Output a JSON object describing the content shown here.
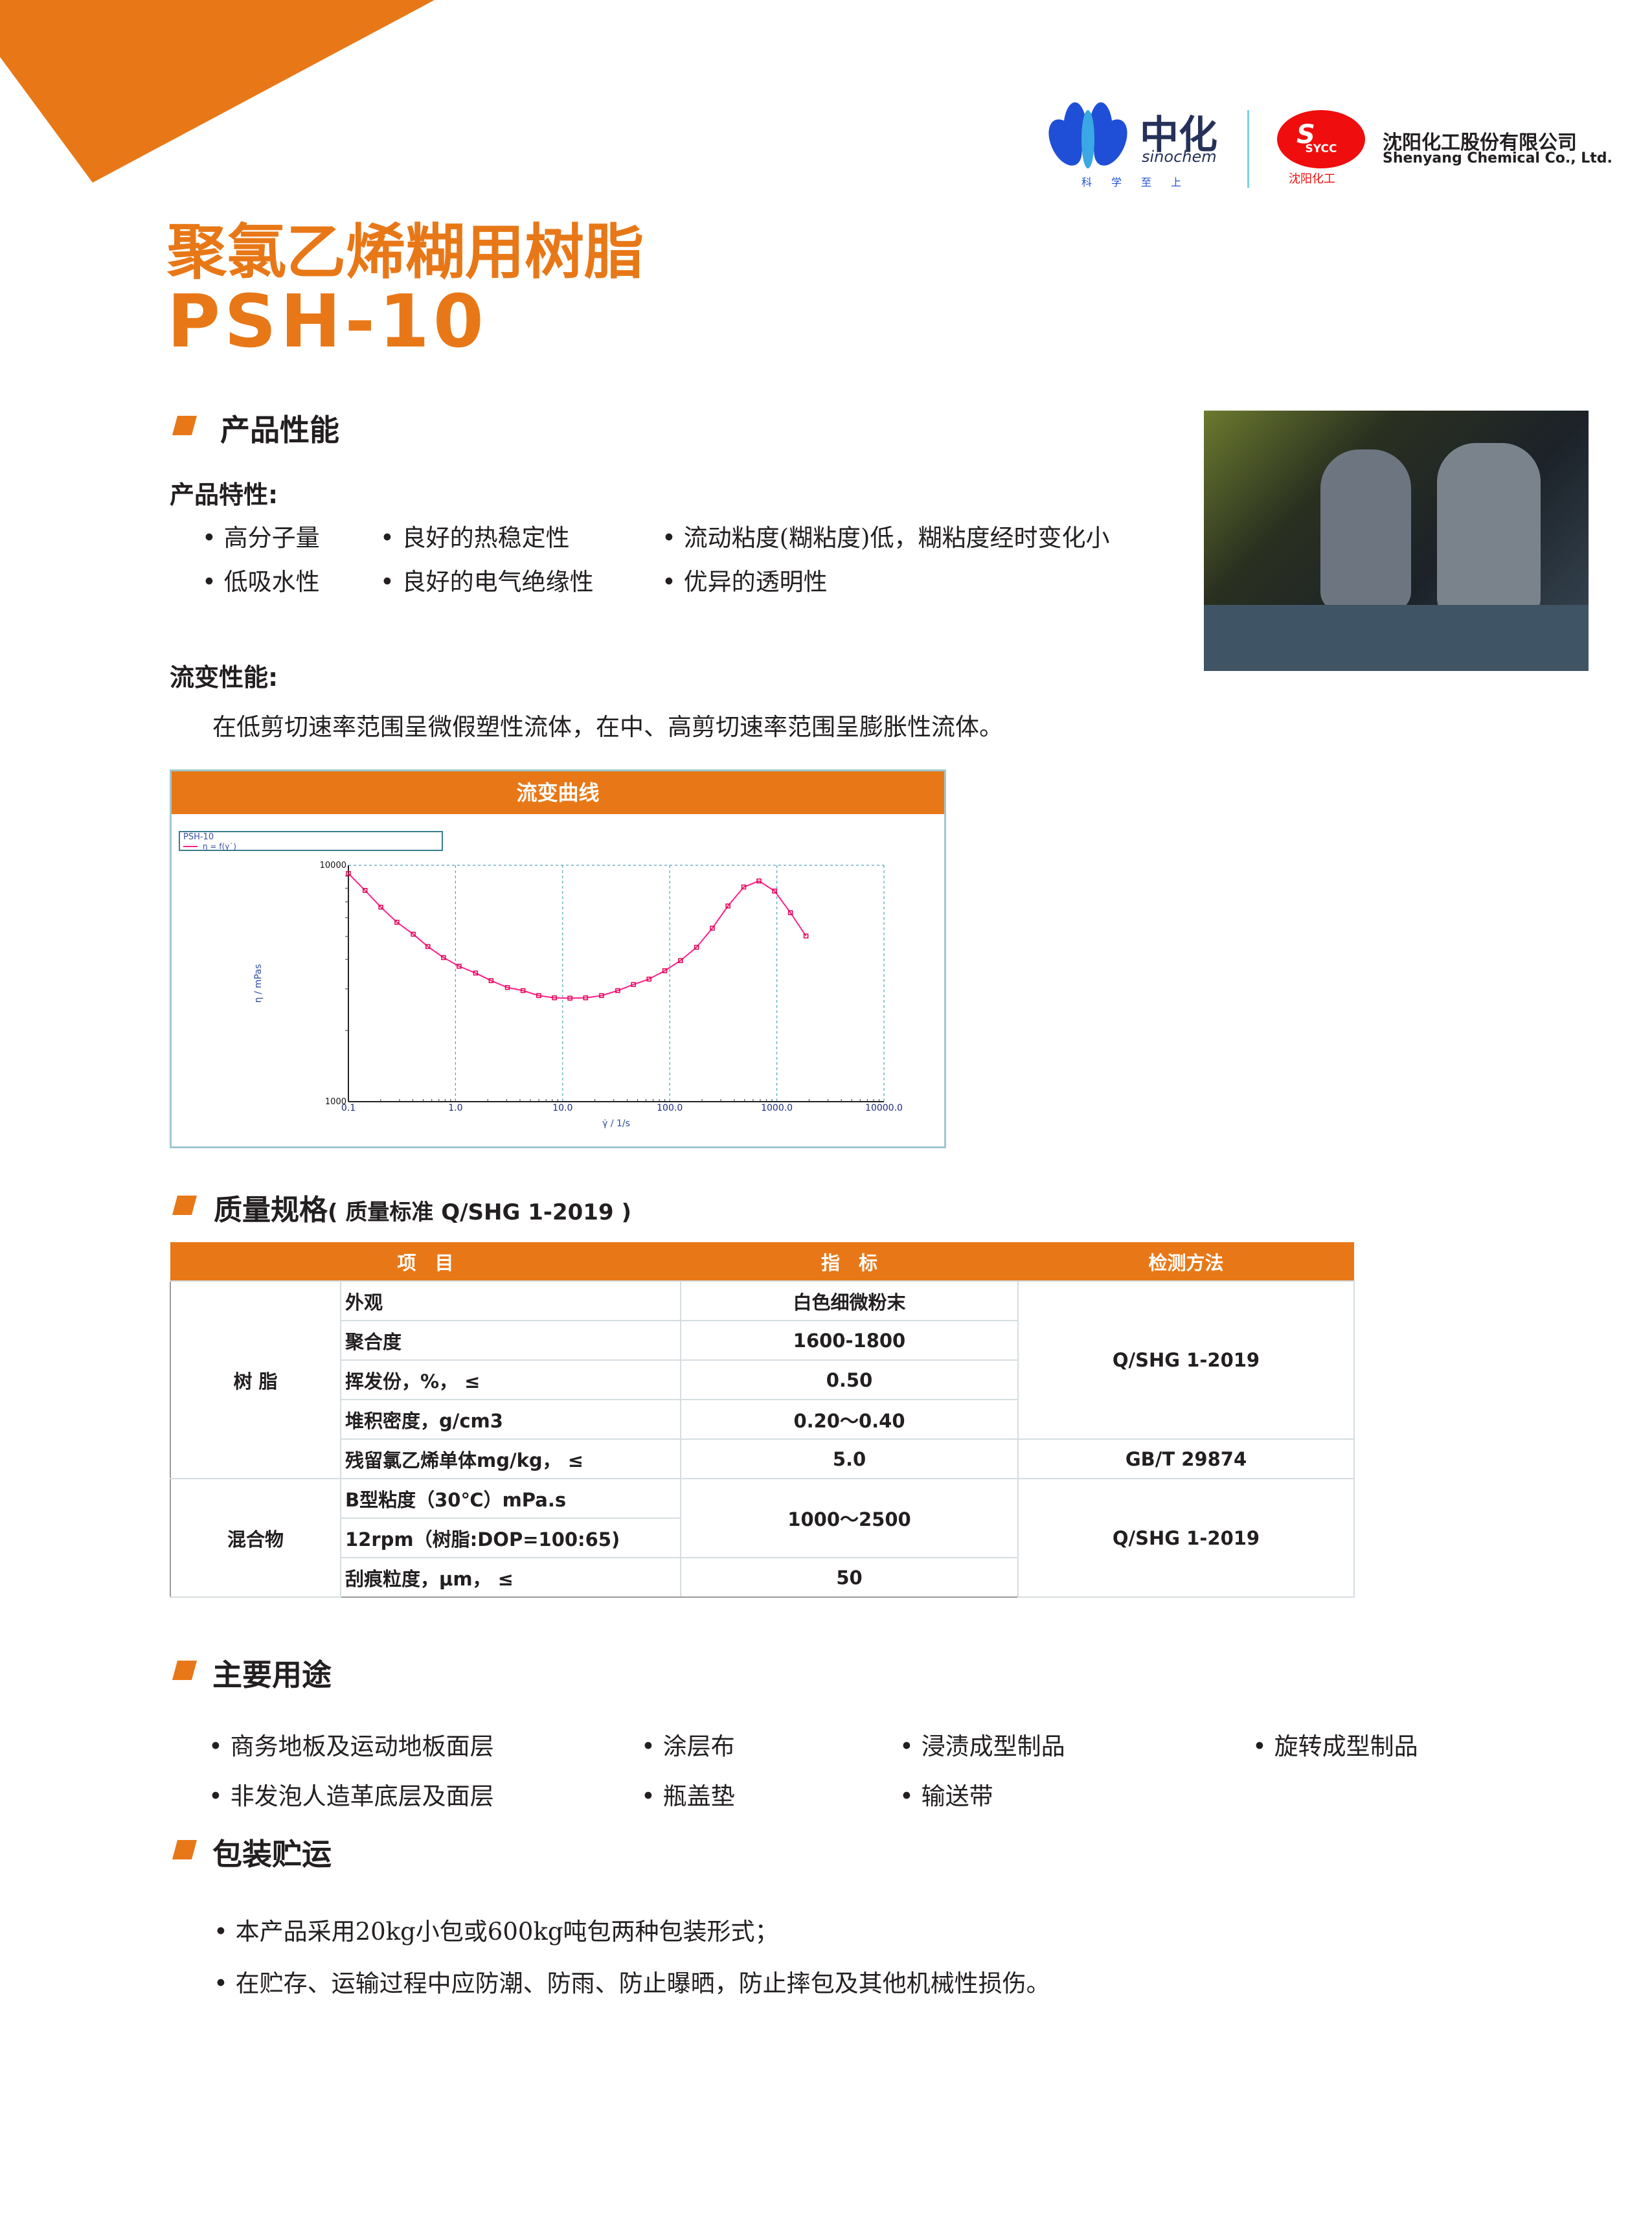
{
  "brand": {
    "sinochem_cn": "中化",
    "sinochem_en": "sinochem",
    "slogan": [
      "科",
      "学",
      "至",
      "上"
    ],
    "sycc_badge": "SYCC",
    "sycc_cn_short": "沈阳化工",
    "company_cn": "沈阳化工股份有限公司",
    "company_en": "Shenyang Chemical Co., Ltd.",
    "accent": "#E87817"
  },
  "title": {
    "cn": "聚氯乙烯糊用树脂",
    "model": "PSH-10"
  },
  "performance": {
    "heading": "产品性能",
    "features_label": "产品特性:",
    "features": [
      "高分子量",
      "良好的热稳定性",
      "流动粘度(糊粘度)低，糊粘度经时变化小",
      "低吸水性",
      "良好的电气绝缘性",
      "优异的透明性"
    ],
    "rheology_label": "流变性能:",
    "rheology_text": "在低剪切速率范围呈微假塑性流体，在中、高剪切速率范围呈膨胀性流体。"
  },
  "chart_data": {
    "type": "line",
    "title": "流变曲线",
    "legend_title": "PSH-10",
    "series": [
      {
        "name": "η = f(γ˙)",
        "color": "#ff1e8c",
        "x": [
          0.1,
          0.143,
          0.201,
          0.284,
          0.403,
          0.552,
          0.773,
          1.08,
          1.54,
          2.15,
          3.05,
          4.27,
          5.98,
          8.38,
          11.7,
          16.4,
          23.1,
          32.7,
          45.8,
          64.1,
          89.9,
          126,
          178,
          250,
          350,
          491,
          681,
          953,
          1340,
          1870
        ],
        "y": [
          9230,
          7830,
          6650,
          5740,
          5110,
          4530,
          4070,
          3740,
          3500,
          3250,
          3040,
          2950,
          2810,
          2750,
          2740,
          2750,
          2810,
          2950,
          3130,
          3300,
          3580,
          3950,
          4500,
          5420,
          6730,
          8090,
          8580,
          7780,
          6300,
          5020
        ]
      }
    ],
    "xlabel": "γ̇ / 1/s",
    "ylabel": "η / mPas",
    "xscale": "log",
    "yscale": "log",
    "xlim": [
      0.1,
      10000
    ],
    "ylim": [
      1000,
      10000
    ],
    "xticks": [
      "0.1",
      "1.0",
      "10.0",
      "100.0",
      "1000.0",
      "10000.0"
    ],
    "yticks": [
      "1000",
      "10000"
    ],
    "grid": "dashed vertical at decades",
    "legend": "top-left"
  },
  "quality": {
    "heading": "质量规格",
    "standard": "( 质量标准 Q/SHG 1-2019 )",
    "headers": [
      "项　目",
      "指　标",
      "检测方法"
    ],
    "groups": [
      {
        "name": "树 脂",
        "rows": [
          [
            "外观",
            "白色细微粉末"
          ],
          [
            "聚合度",
            "1600-1800"
          ],
          [
            "挥发份，%， ≤",
            "0.50"
          ],
          [
            "堆积密度，g/cm3",
            "0.20～0.40"
          ],
          [
            "残留氯乙烯单体mg/kg， ≤",
            "5.0"
          ]
        ],
        "methods": [
          "Q/SHG 1-2019",
          "GB/T 29874"
        ]
      },
      {
        "name": "混合物",
        "rows": [
          [
            "B型粘度（30℃）mPa.s",
            "1000～2500"
          ],
          [
            "12rpm（树脂:DOP=100:65)",
            ""
          ],
          [
            "刮痕粒度，μm， ≤",
            "50"
          ]
        ],
        "methods": [
          "Q/SHG 1-2019"
        ]
      }
    ]
  },
  "uses": {
    "heading": "主要用途",
    "items": [
      "商务地板及运动地板面层",
      "涂层布",
      "浸渍成型制品",
      "旋转成型制品",
      "非发泡人造革底层及面层",
      "瓶盖垫",
      "输送带"
    ]
  },
  "packaging": {
    "heading": "包装贮运",
    "items": [
      "本产品采用20kg小包或600kg吨包两种包装形式；",
      "在贮存、运输过程中应防潮、防雨、防止曝晒，防止摔包及其他机械性损伤。"
    ]
  }
}
